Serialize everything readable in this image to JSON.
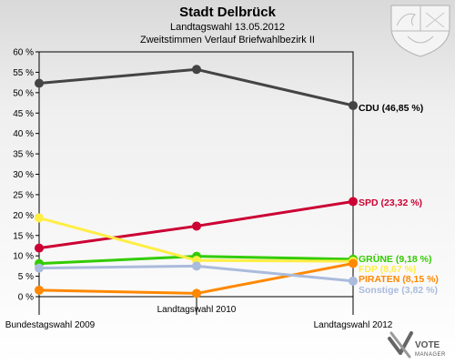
{
  "header": {
    "title": "Stadt Delbrück",
    "subtitle1": "Landtagswahl 13.05.2012",
    "subtitle2": "Zweitstimmen Verlauf Briefwahlbezirk II"
  },
  "logo": {
    "text": "VOTE",
    "sub": "MANAGER"
  },
  "chart_data": {
    "type": "line",
    "title": "Stadt Delbrück",
    "xlabel": "",
    "ylabel": "",
    "categories": [
      "Bundestagswahl 2009",
      "Landtagswahl 2010",
      "Landtagswahl 2012"
    ],
    "ylim": [
      0,
      60
    ],
    "yticks": [
      0,
      5,
      10,
      15,
      20,
      25,
      30,
      35,
      40,
      45,
      50,
      55,
      60
    ],
    "ytick_labels": [
      "0 %",
      "5 %",
      "10 %",
      "15 %",
      "20 %",
      "25 %",
      "30 %",
      "35 %",
      "40 %",
      "45 %",
      "50 %",
      "55 %",
      "60 %"
    ],
    "grid": false,
    "legend": "end labels right of last point",
    "series": [
      {
        "name": "CDU",
        "end_label": "CDU (46,85 %)",
        "color": "#444444",
        "label_color": "#000000",
        "values": [
          52.3,
          55.7,
          46.85
        ]
      },
      {
        "name": "SPD",
        "end_label": "SPD (23,32 %)",
        "color": "#cc0033",
        "label_color": "#cc0033",
        "values": [
          11.9,
          17.3,
          23.32
        ]
      },
      {
        "name": "GRÜNE",
        "end_label": "GRÜNE (9,18 %)",
        "color": "#33cc00",
        "label_color": "#33cc00",
        "values": [
          8.1,
          9.9,
          9.18
        ]
      },
      {
        "name": "FDP",
        "end_label": "FDP (8,67 %)",
        "color": "#ffee44",
        "label_color": "#ffee44",
        "values": [
          19.3,
          8.9,
          8.67
        ]
      },
      {
        "name": "PIRATEN",
        "end_label": "PIRATEN (8,15 %)",
        "color": "#ff8800",
        "label_color": "#ff8800",
        "values": [
          1.6,
          0.8,
          8.15
        ]
      },
      {
        "name": "Sonstige",
        "end_label": "Sonstige (3,82 %)",
        "color": "#aabbdd",
        "label_color": "#aabbdd",
        "values": [
          7.0,
          7.5,
          3.82
        ]
      }
    ]
  }
}
